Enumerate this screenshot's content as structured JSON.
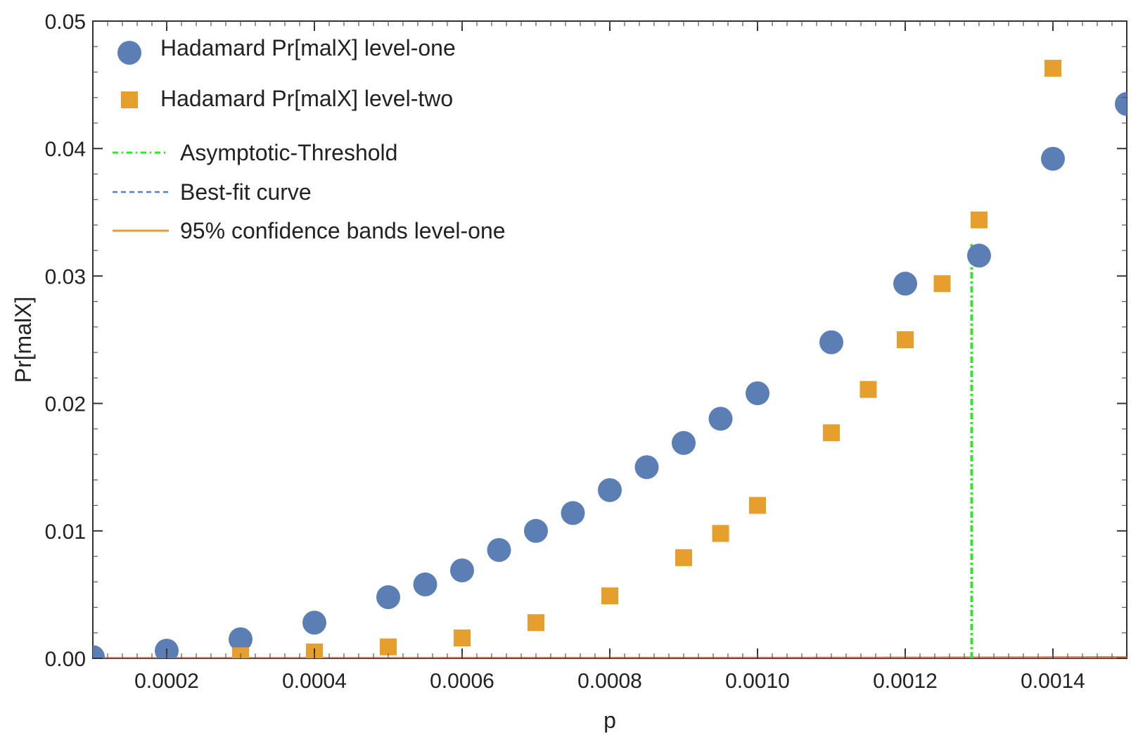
{
  "chart_data": {
    "type": "scatter",
    "title": "",
    "xlabel": "p",
    "ylabel": "Pr[malX]",
    "xlim": [
      0.0001,
      0.0015
    ],
    "ylim": [
      0.0,
      0.05
    ],
    "grid": false,
    "legend_position": "top-left",
    "x_ticks": [
      0.0002,
      0.0004,
      0.0006,
      0.0008,
      0.001,
      0.0012,
      0.0014
    ],
    "x_tick_labels": [
      "0.0002",
      "0.0004",
      "0.0006",
      "0.0008",
      "0.0010",
      "0.0012",
      "0.0014"
    ],
    "y_ticks": [
      0.0,
      0.01,
      0.02,
      0.03,
      0.04,
      0.05
    ],
    "y_tick_labels": [
      "0.00",
      "0.01",
      "0.02",
      "0.03",
      "0.04",
      "0.05"
    ],
    "series": [
      {
        "name": "Hadamard Pr[malX] level-one",
        "marker": "circle",
        "color": "#5b7fb5",
        "x": [
          0.0001,
          0.0002,
          0.0003,
          0.0004,
          0.0005,
          0.00055,
          0.0006,
          0.00065,
          0.0007,
          0.00075,
          0.0008,
          0.00085,
          0.0009,
          0.00095,
          0.001,
          0.0011,
          0.0012,
          0.0013,
          0.0014,
          0.0015
        ],
        "y": [
          0.0001,
          0.0006,
          0.0015,
          0.0028,
          0.0048,
          0.0058,
          0.0069,
          0.0085,
          0.01,
          0.0114,
          0.0132,
          0.015,
          0.0169,
          0.0188,
          0.0208,
          0.0248,
          0.0294,
          0.0316,
          0.0392,
          0.0435
        ]
      },
      {
        "name": "Hadamard Pr[malX] level-two",
        "marker": "square",
        "color": "#e69f2c",
        "x": [
          0.0003,
          0.0004,
          0.0005,
          0.0006,
          0.0007,
          0.0008,
          0.0009,
          0.00095,
          0.001,
          0.0011,
          0.00115,
          0.0012,
          0.00125,
          0.0013,
          0.0014
        ],
        "y": [
          0.0002,
          0.0005,
          0.0009,
          0.0016,
          0.0028,
          0.0049,
          0.0079,
          0.0098,
          0.012,
          0.0177,
          0.0211,
          0.025,
          0.0294,
          0.0344,
          0.0463
        ]
      }
    ],
    "threshold": {
      "name": "Asymptotic-Threshold",
      "x": 0.00129,
      "y": 0.0325,
      "color": "#22ee22"
    },
    "best_fit": {
      "name": "Best-fit curve",
      "color": "#5b7fb5",
      "coeff": 19.4,
      "exponent": 2
    },
    "confidence_bands": {
      "name": "95% confidence bands level-one",
      "color": "#e69f2c",
      "upper_coeff": 20.3,
      "lower_coeff": 18.9
    },
    "level_two_fit": {
      "color": "#e8613a",
      "coeff": 19400,
      "exponent": 3
    }
  }
}
